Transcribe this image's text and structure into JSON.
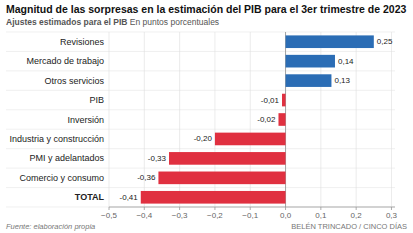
{
  "chart_data": {
    "type": "bar",
    "orientation": "horizontal",
    "title": "Magnitud de las sorpresas en la estimación del PIB para el 3er trimestre de 2023",
    "subtitle": "Ajustes estimados para el PIB",
    "annotations": [
      "En puntos porcentuales",
      "Fuente: elaboración propia",
      "BELÉN TRINCADO / CINCO DÍAS"
    ],
    "categories": [
      "TOTAL",
      "Comercio y consumo",
      "PMI y adelantados",
      "Industria y construcción",
      "Inversión",
      "PIB",
      "Otros servicios",
      "Mercado de trabajo",
      "Revisiones"
    ],
    "values": [
      -0.41,
      -0.36,
      -0.33,
      -0.2,
      -0.02,
      -0.01,
      0.13,
      0.14,
      0.25
    ],
    "value_labels": [
      "-0,41",
      "-0,36",
      "-0,33",
      "-0,20",
      "-0,02",
      "-0,01",
      "0,13",
      "0,14",
      "0,25"
    ],
    "colors": [
      "#e03040",
      "#e03040",
      "#e03040",
      "#e03040",
      "#e03040",
      "#e03040",
      "#2b6db5",
      "#2b6db5",
      "#2b6db5"
    ],
    "xlim": [
      -0.5,
      0.31
    ],
    "xticks": [
      {
        "value": -0.5,
        "label": "−0,5"
      },
      {
        "value": -0.4,
        "label": "−0,4"
      },
      {
        "value": -0.3,
        "label": "−0,3"
      },
      {
        "value": -0.2,
        "label": "−0,2"
      },
      {
        "value": -0.1,
        "label": "−0,1"
      },
      {
        "value": 0.0,
        "label": "0,0"
      },
      {
        "value": 0.1,
        "label": "0,1"
      },
      {
        "value": 0.2,
        "label": "0,2"
      },
      {
        "value": 0.3,
        "label": "0,3"
      }
    ],
    "grid": true,
    "data_labels": true
  }
}
